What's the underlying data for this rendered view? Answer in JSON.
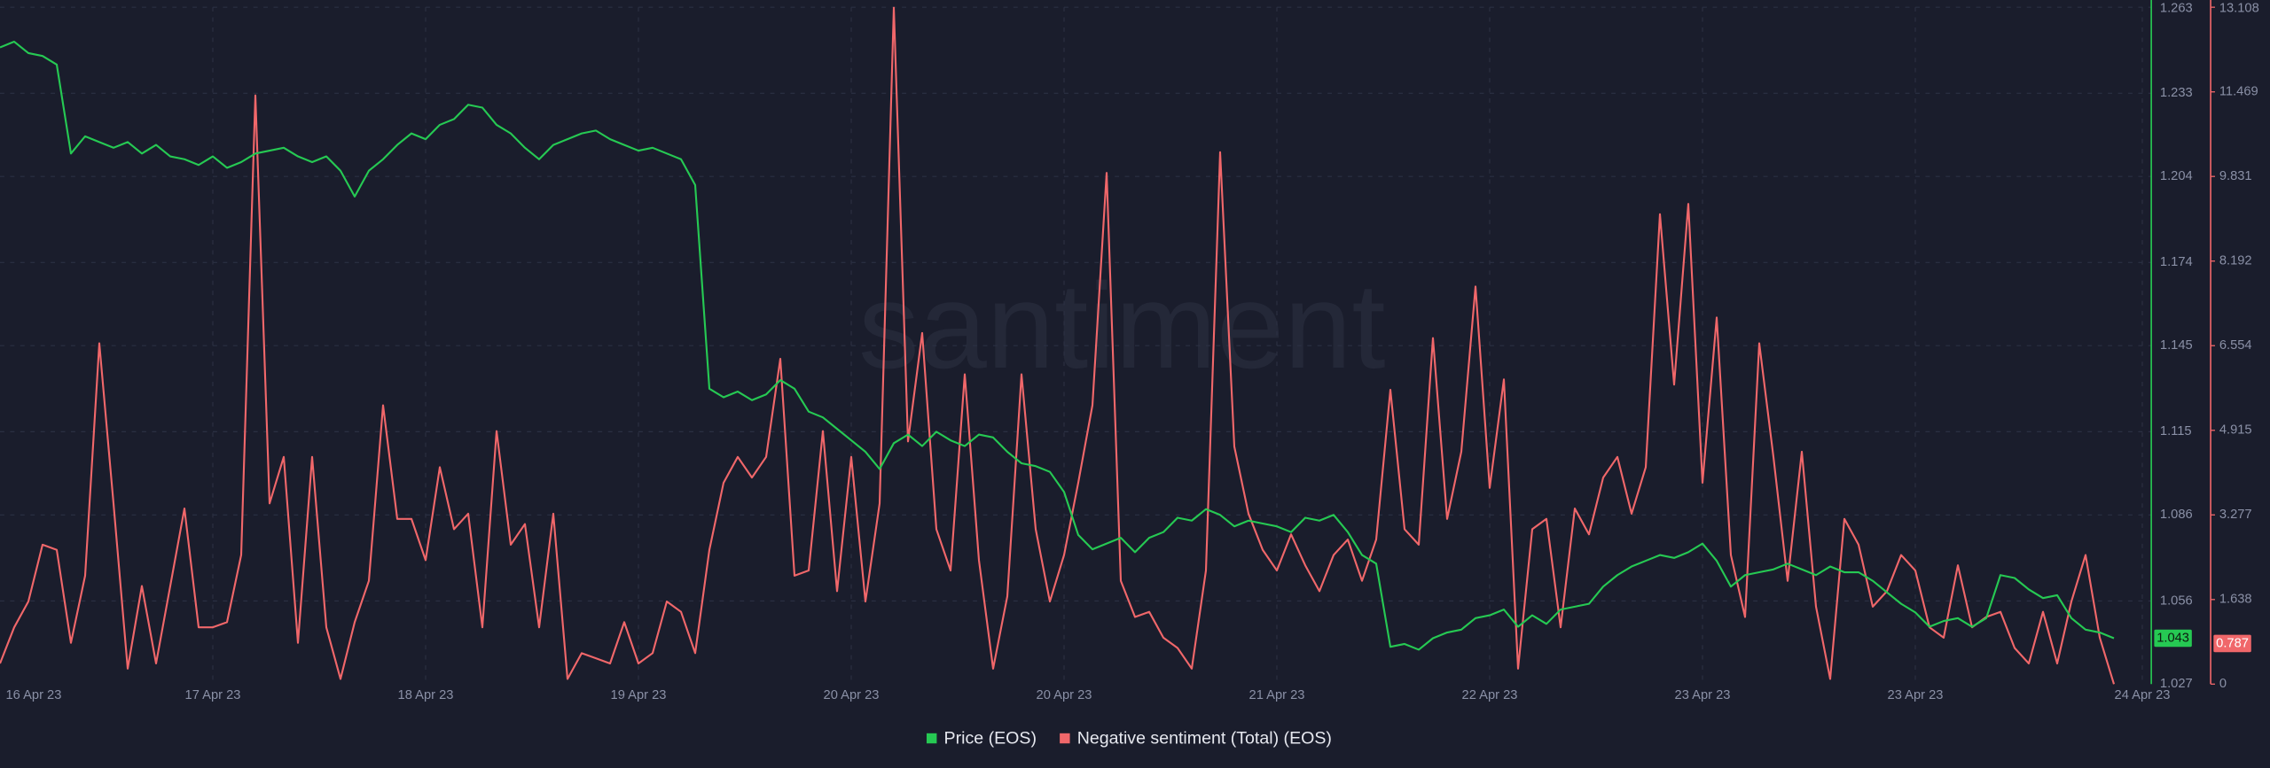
{
  "chart_data": {
    "type": "line",
    "watermark": "santiment",
    "categories": [
      "16 Apr 23",
      null,
      null,
      null,
      null,
      null,
      null,
      null,
      null,
      null,
      null,
      null,
      null,
      null,
      null,
      "17 Apr 23",
      null,
      null,
      null,
      null,
      null,
      null,
      null,
      null,
      null,
      null,
      null,
      null,
      null,
      null,
      "18 Apr 23",
      null,
      null,
      null,
      null,
      null,
      null,
      null,
      null,
      null,
      null,
      null,
      null,
      null,
      null,
      "19 Apr 23",
      null,
      null,
      null,
      null,
      null,
      null,
      null,
      null,
      null,
      null,
      null,
      null,
      null,
      null,
      "20 Apr 23",
      null,
      null,
      null,
      null,
      null,
      null,
      null,
      null,
      null,
      null,
      null,
      null,
      null,
      null,
      "20 Apr 23",
      null,
      null,
      null,
      null,
      null,
      null,
      null,
      null,
      null,
      null,
      null,
      null,
      null,
      null,
      "21 Apr 23",
      null,
      null,
      null,
      null,
      null,
      null,
      null,
      null,
      null,
      null,
      null,
      null,
      null,
      null,
      "22 Apr 23",
      null,
      null,
      null,
      null,
      null,
      null,
      null,
      null,
      null,
      null,
      null,
      null,
      null,
      null,
      "23 Apr 23",
      null,
      null,
      null,
      null,
      null,
      null,
      null,
      null,
      null,
      null,
      null,
      null,
      null,
      null,
      "23 Apr 23",
      null,
      null,
      null,
      null,
      null,
      null,
      null,
      null,
      null,
      null,
      null,
      null,
      null,
      null,
      null,
      "24 Apr 23"
    ],
    "series": [
      {
        "name": "Price (EOS)",
        "color": "#26c953",
        "axis": "y",
        "current_value": 1.043,
        "values": [
          1.249,
          1.251,
          1.247,
          1.246,
          1.243,
          1.212,
          1.218,
          1.216,
          1.214,
          1.216,
          1.212,
          1.215,
          1.211,
          1.21,
          1.208,
          1.211,
          1.207,
          1.209,
          1.212,
          1.213,
          1.214,
          1.211,
          1.209,
          1.211,
          1.206,
          1.197,
          1.206,
          1.21,
          1.215,
          1.219,
          1.217,
          1.222,
          1.224,
          1.229,
          1.228,
          1.222,
          1.219,
          1.214,
          1.21,
          1.215,
          1.217,
          1.219,
          1.22,
          1.217,
          1.215,
          1.213,
          1.214,
          1.212,
          1.21,
          1.201,
          1.13,
          1.127,
          1.129,
          1.126,
          1.128,
          1.133,
          1.13,
          1.122,
          1.12,
          1.116,
          1.112,
          1.108,
          1.102,
          1.111,
          1.114,
          1.11,
          1.115,
          1.112,
          1.11,
          1.114,
          1.113,
          1.108,
          1.104,
          1.103,
          1.101,
          1.094,
          1.079,
          1.074,
          1.076,
          1.078,
          1.073,
          1.078,
          1.08,
          1.085,
          1.084,
          1.088,
          1.086,
          1.082,
          1.084,
          1.083,
          1.082,
          1.08,
          1.085,
          1.084,
          1.086,
          1.08,
          1.072,
          1.069,
          1.04,
          1.041,
          1.039,
          1.043,
          1.045,
          1.046,
          1.05,
          1.051,
          1.053,
          1.047,
          1.051,
          1.048,
          1.053,
          1.054,
          1.055,
          1.061,
          1.065,
          1.068,
          1.07,
          1.072,
          1.071,
          1.073,
          1.076,
          1.07,
          1.061,
          1.065,
          1.066,
          1.067,
          1.069,
          1.067,
          1.065,
          1.068,
          1.066,
          1.066,
          1.063,
          1.059,
          1.055,
          1.052,
          1.047,
          1.049,
          1.05,
          1.047,
          1.05,
          1.065,
          1.064,
          1.06,
          1.057,
          1.058,
          1.05,
          1.046,
          1.045,
          1.043,
          null,
          null
        ]
      },
      {
        "name": "Negative sentiment (Total) (EOS)",
        "color": "#f0676a",
        "axis": "y2",
        "current_value": 0.787,
        "values": [
          0.4,
          1.1,
          1.6,
          2.7,
          2.6,
          0.8,
          2.1,
          6.6,
          3.5,
          0.3,
          1.9,
          0.4,
          1.9,
          3.4,
          1.1,
          1.1,
          1.2,
          2.5,
          11.4,
          3.5,
          4.4,
          0.8,
          4.4,
          1.1,
          0.1,
          1.2,
          2.0,
          5.4,
          3.2,
          3.2,
          2.4,
          4.2,
          3.0,
          3.3,
          1.1,
          4.9,
          2.7,
          3.1,
          1.1,
          3.3,
          0.1,
          0.6,
          0.5,
          0.4,
          1.2,
          0.4,
          0.6,
          1.6,
          1.4,
          0.6,
          2.6,
          3.9,
          4.4,
          4.0,
          4.4,
          6.3,
          2.1,
          2.2,
          4.9,
          1.8,
          4.4,
          1.6,
          3.5,
          13.1,
          4.7,
          6.8,
          3.0,
          2.2,
          6.0,
          2.4,
          0.3,
          1.7,
          6.0,
          3.0,
          1.6,
          2.5,
          3.9,
          5.4,
          9.9,
          2.0,
          1.3,
          1.4,
          0.9,
          0.7,
          0.3,
          2.2,
          10.3,
          4.6,
          3.3,
          2.6,
          2.2,
          2.9,
          2.3,
          1.8,
          2.5,
          2.8,
          2.0,
          2.8,
          5.7,
          3.0,
          2.7,
          6.7,
          3.2,
          4.5,
          7.7,
          3.8,
          5.9,
          0.3,
          3.0,
          3.2,
          1.1,
          3.4,
          2.9,
          4.0,
          4.4,
          3.3,
          4.2,
          9.1,
          5.8,
          9.3,
          3.9,
          7.1,
          2.5,
          1.3,
          6.6,
          4.4,
          2.0,
          4.5,
          1.5,
          0.1,
          3.2,
          2.7,
          1.5,
          1.8,
          2.5,
          2.2,
          1.1,
          0.9,
          2.3,
          1.1,
          1.3,
          1.4,
          0.7,
          0.4,
          1.4,
          0.4,
          1.6,
          2.5,
          0.9,
          0.0,
          null,
          null
        ]
      }
    ],
    "ylim": [
      1.027,
      1.263
    ],
    "yticks": [
      1.027,
      1.056,
      1.086,
      1.115,
      1.145,
      1.174,
      1.204,
      1.233,
      1.263
    ],
    "y2lim": [
      0,
      13.108
    ],
    "y2ticks": [
      0,
      1.638,
      3.277,
      4.915,
      6.554,
      8.192,
      9.831,
      11.469,
      13.108
    ],
    "grid": true,
    "legend": "bottom"
  }
}
